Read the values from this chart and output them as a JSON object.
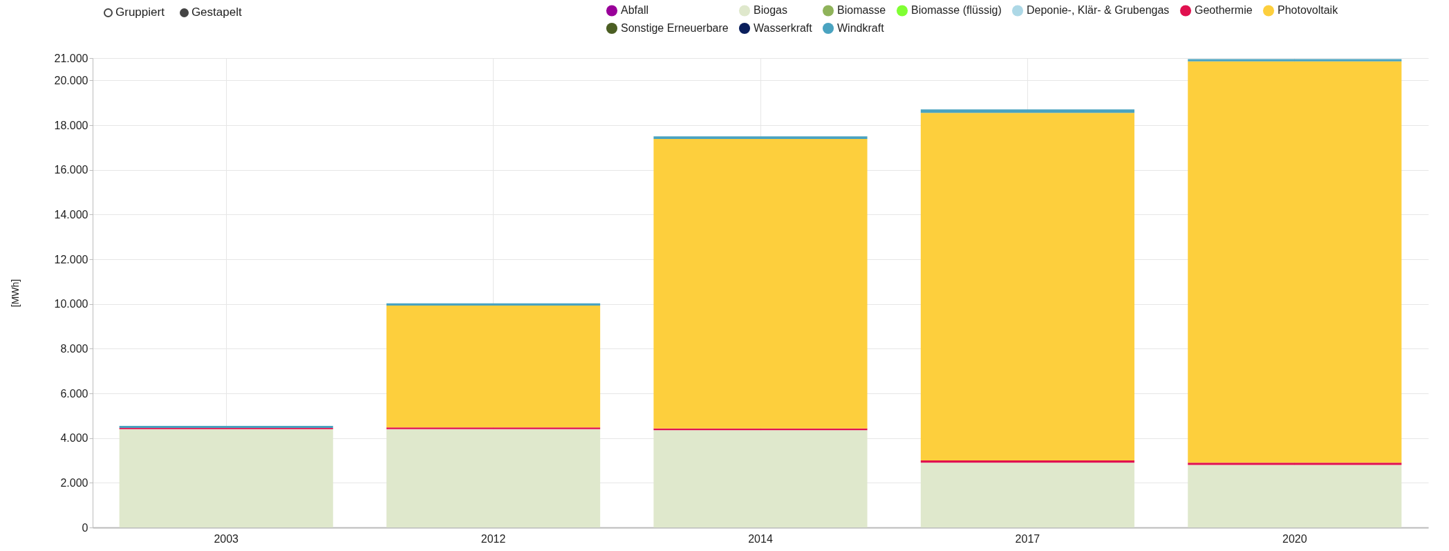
{
  "chart_data": {
    "type": "bar",
    "stacked": true,
    "ylabel": "[MWh]",
    "annotations": [
      "Gruppiert",
      "Gestapelt"
    ],
    "categories": [
      "2003",
      "2012",
      "2014",
      "2017",
      "2020"
    ],
    "series": [
      {
        "name": "Abfall",
        "color": "#990099",
        "values": [
          null,
          null,
          null,
          null,
          null
        ]
      },
      {
        "name": "Biogas",
        "color": "#dfe8cc",
        "values": [
          4400,
          4400,
          4350,
          2900,
          2800
        ]
      },
      {
        "name": "Biomasse",
        "color": "#8fb35a",
        "values": [
          null,
          null,
          null,
          null,
          null
        ]
      },
      {
        "name": "Biomasse (flüssig)",
        "color": "#80ff33",
        "values": [
          null,
          null,
          null,
          null,
          null
        ]
      },
      {
        "name": "Deponie-, Klär- & Grubengas",
        "color": "#add8e6",
        "values": [
          null,
          null,
          null,
          null,
          null
        ]
      },
      {
        "name": "Geothermie",
        "color": "#e0104f",
        "values": [
          50,
          80,
          80,
          100,
          100
        ]
      },
      {
        "name": "Photovoltaik",
        "color": "#fdcf3d",
        "values": [
          null,
          5450,
          12950,
          15550,
          17950
        ]
      },
      {
        "name": "Sonstige Erneuerbare",
        "color": "#4b5e23",
        "values": [
          null,
          null,
          null,
          null,
          null
        ]
      },
      {
        "name": "Wasserkraft",
        "color": "#0a1f5c",
        "values": [
          null,
          null,
          null,
          null,
          null
        ]
      },
      {
        "name": "Windkraft",
        "color": "#4aa3c0",
        "values": [
          100,
          100,
          120,
          150,
          100
        ]
      }
    ],
    "ylim": [
      0,
      21000
    ],
    "yticks": [
      0,
      {
        "value": 2000,
        "label": "2.000"
      },
      {
        "value": 4000,
        "label": "4.000"
      },
      {
        "value": 6000,
        "label": "6.000"
      },
      {
        "value": 8000,
        "label": "8.000"
      },
      {
        "value": 10000,
        "label": "10.000"
      },
      {
        "value": 12000,
        "label": "12.000"
      },
      {
        "value": 14000,
        "label": "14.000"
      },
      {
        "value": 16000,
        "label": "16.000"
      },
      {
        "value": 18000,
        "label": "18.000"
      },
      {
        "value": 20000,
        "label": "20.000"
      },
      {
        "value": 21000,
        "label": "21.000"
      }
    ],
    "grid": true,
    "legend": "top right"
  }
}
